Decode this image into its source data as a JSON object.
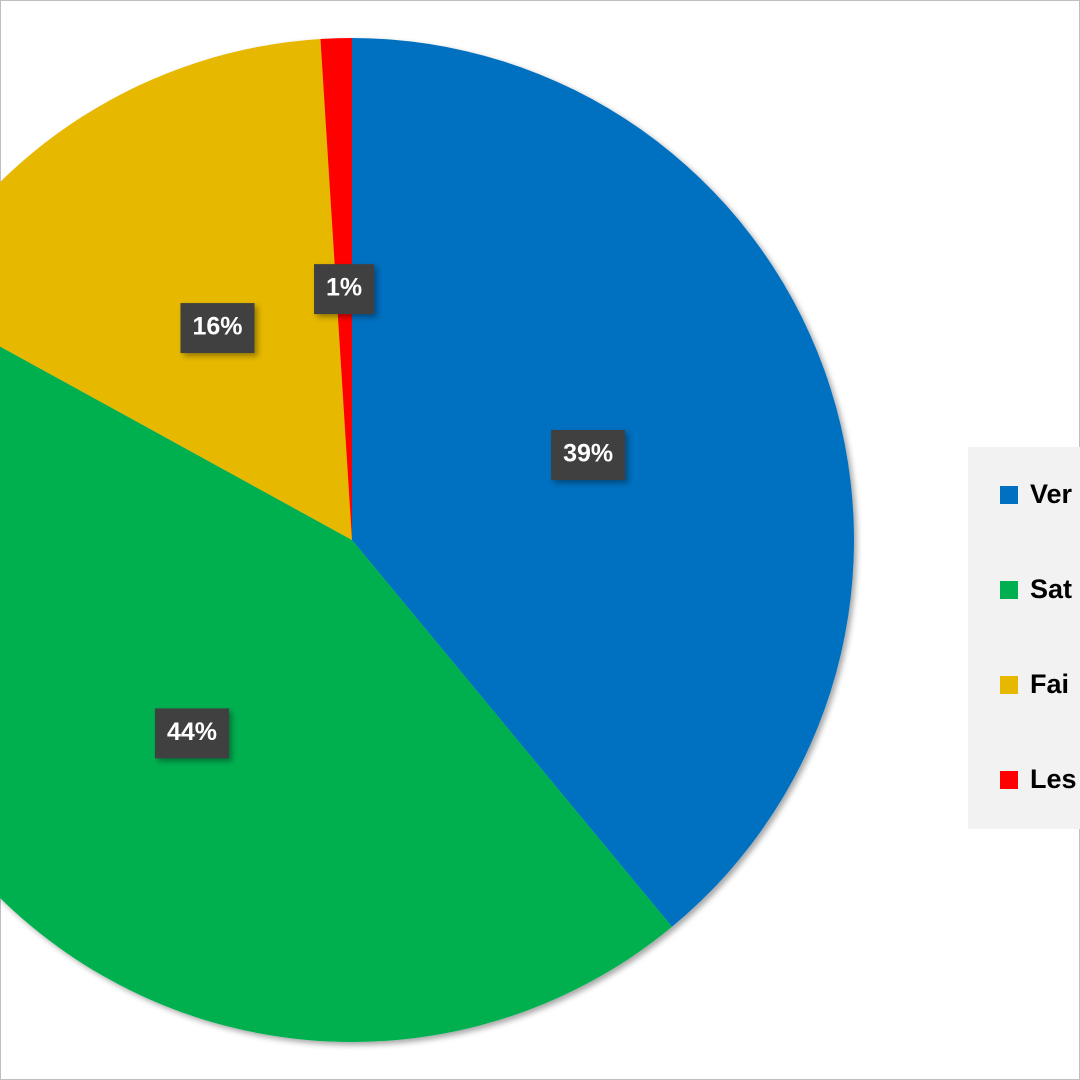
{
  "chart_data": {
    "type": "pie",
    "categories": [
      "Ver",
      "Sat",
      "Fai",
      "Les"
    ],
    "values": [
      39,
      44,
      16,
      1
    ],
    "value_labels": [
      "39%",
      "44%",
      "16%",
      "1%"
    ],
    "colors": [
      "#0070c0",
      "#00b050",
      "#e6b800",
      "#ff0000"
    ]
  }
}
